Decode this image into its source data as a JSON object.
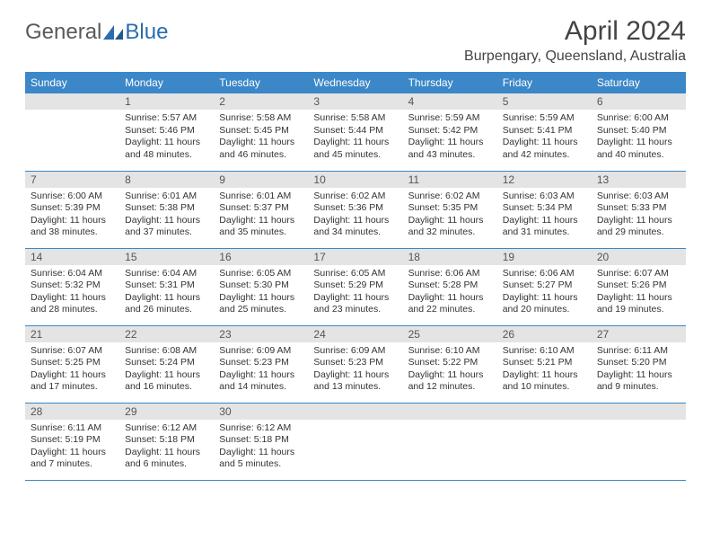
{
  "brand": {
    "part1": "General",
    "part2": "Blue"
  },
  "title": "April 2024",
  "location": "Burpengary, Queensland, Australia",
  "colors": {
    "header_bg": "#3b87c8",
    "header_text": "#ffffff",
    "daynum_bg": "#e4e4e4",
    "row_border": "#3b87c8",
    "body_text": "#333333"
  },
  "weekdays": [
    "Sunday",
    "Monday",
    "Tuesday",
    "Wednesday",
    "Thursday",
    "Friday",
    "Saturday"
  ],
  "weeks": [
    [
      {
        "blank": true
      },
      {
        "n": "1",
        "sr": "5:57 AM",
        "ss": "5:46 PM",
        "dl": "11 hours and 48 minutes."
      },
      {
        "n": "2",
        "sr": "5:58 AM",
        "ss": "5:45 PM",
        "dl": "11 hours and 46 minutes."
      },
      {
        "n": "3",
        "sr": "5:58 AM",
        "ss": "5:44 PM",
        "dl": "11 hours and 45 minutes."
      },
      {
        "n": "4",
        "sr": "5:59 AM",
        "ss": "5:42 PM",
        "dl": "11 hours and 43 minutes."
      },
      {
        "n": "5",
        "sr": "5:59 AM",
        "ss": "5:41 PM",
        "dl": "11 hours and 42 minutes."
      },
      {
        "n": "6",
        "sr": "6:00 AM",
        "ss": "5:40 PM",
        "dl": "11 hours and 40 minutes."
      }
    ],
    [
      {
        "n": "7",
        "sr": "6:00 AM",
        "ss": "5:39 PM",
        "dl": "11 hours and 38 minutes."
      },
      {
        "n": "8",
        "sr": "6:01 AM",
        "ss": "5:38 PM",
        "dl": "11 hours and 37 minutes."
      },
      {
        "n": "9",
        "sr": "6:01 AM",
        "ss": "5:37 PM",
        "dl": "11 hours and 35 minutes."
      },
      {
        "n": "10",
        "sr": "6:02 AM",
        "ss": "5:36 PM",
        "dl": "11 hours and 34 minutes."
      },
      {
        "n": "11",
        "sr": "6:02 AM",
        "ss": "5:35 PM",
        "dl": "11 hours and 32 minutes."
      },
      {
        "n": "12",
        "sr": "6:03 AM",
        "ss": "5:34 PM",
        "dl": "11 hours and 31 minutes."
      },
      {
        "n": "13",
        "sr": "6:03 AM",
        "ss": "5:33 PM",
        "dl": "11 hours and 29 minutes."
      }
    ],
    [
      {
        "n": "14",
        "sr": "6:04 AM",
        "ss": "5:32 PM",
        "dl": "11 hours and 28 minutes."
      },
      {
        "n": "15",
        "sr": "6:04 AM",
        "ss": "5:31 PM",
        "dl": "11 hours and 26 minutes."
      },
      {
        "n": "16",
        "sr": "6:05 AM",
        "ss": "5:30 PM",
        "dl": "11 hours and 25 minutes."
      },
      {
        "n": "17",
        "sr": "6:05 AM",
        "ss": "5:29 PM",
        "dl": "11 hours and 23 minutes."
      },
      {
        "n": "18",
        "sr": "6:06 AM",
        "ss": "5:28 PM",
        "dl": "11 hours and 22 minutes."
      },
      {
        "n": "19",
        "sr": "6:06 AM",
        "ss": "5:27 PM",
        "dl": "11 hours and 20 minutes."
      },
      {
        "n": "20",
        "sr": "6:07 AM",
        "ss": "5:26 PM",
        "dl": "11 hours and 19 minutes."
      }
    ],
    [
      {
        "n": "21",
        "sr": "6:07 AM",
        "ss": "5:25 PM",
        "dl": "11 hours and 17 minutes."
      },
      {
        "n": "22",
        "sr": "6:08 AM",
        "ss": "5:24 PM",
        "dl": "11 hours and 16 minutes."
      },
      {
        "n": "23",
        "sr": "6:09 AM",
        "ss": "5:23 PM",
        "dl": "11 hours and 14 minutes."
      },
      {
        "n": "24",
        "sr": "6:09 AM",
        "ss": "5:23 PM",
        "dl": "11 hours and 13 minutes."
      },
      {
        "n": "25",
        "sr": "6:10 AM",
        "ss": "5:22 PM",
        "dl": "11 hours and 12 minutes."
      },
      {
        "n": "26",
        "sr": "6:10 AM",
        "ss": "5:21 PM",
        "dl": "11 hours and 10 minutes."
      },
      {
        "n": "27",
        "sr": "6:11 AM",
        "ss": "5:20 PM",
        "dl": "11 hours and 9 minutes."
      }
    ],
    [
      {
        "n": "28",
        "sr": "6:11 AM",
        "ss": "5:19 PM",
        "dl": "11 hours and 7 minutes."
      },
      {
        "n": "29",
        "sr": "6:12 AM",
        "ss": "5:18 PM",
        "dl": "11 hours and 6 minutes."
      },
      {
        "n": "30",
        "sr": "6:12 AM",
        "ss": "5:18 PM",
        "dl": "11 hours and 5 minutes."
      },
      {
        "blank": true
      },
      {
        "blank": true
      },
      {
        "blank": true
      },
      {
        "blank": true
      }
    ]
  ],
  "labels": {
    "sunrise": "Sunrise:",
    "sunset": "Sunset:",
    "daylight": "Daylight:"
  }
}
